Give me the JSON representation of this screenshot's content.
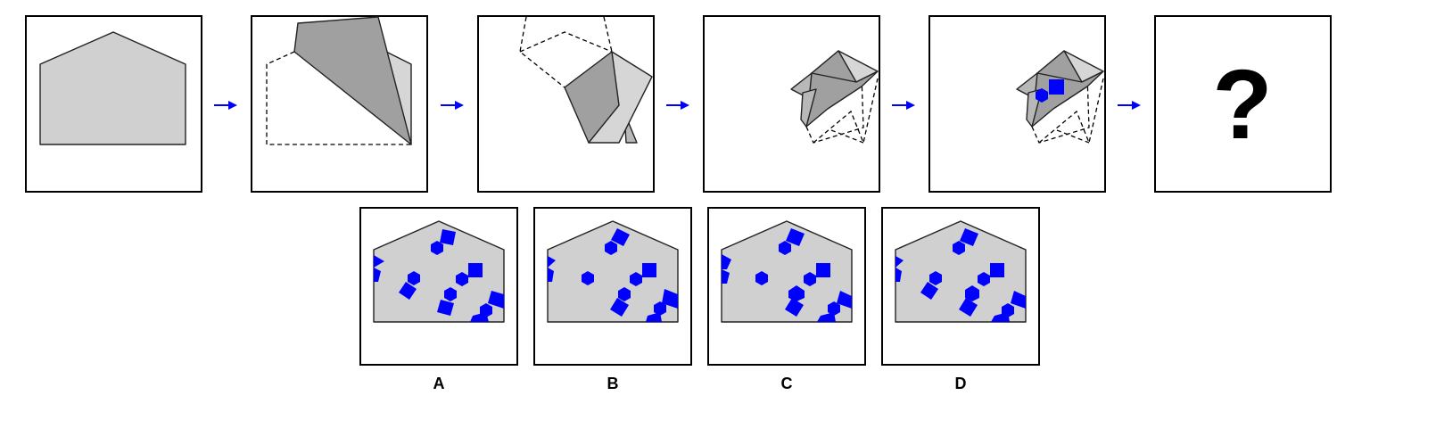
{
  "question_mark": "?",
  "options": [
    {
      "label": "A"
    },
    {
      "label": "B"
    },
    {
      "label": "C"
    },
    {
      "label": "D"
    }
  ],
  "colors": {
    "paper": "#d0d0d0",
    "fold_dark": "#a0a0a0",
    "fold_light": "#d6d6d6",
    "hole": "#0000ff",
    "arrow": "#0000ff"
  },
  "icons": [
    "arrow-right-icon",
    "question-mark"
  ]
}
